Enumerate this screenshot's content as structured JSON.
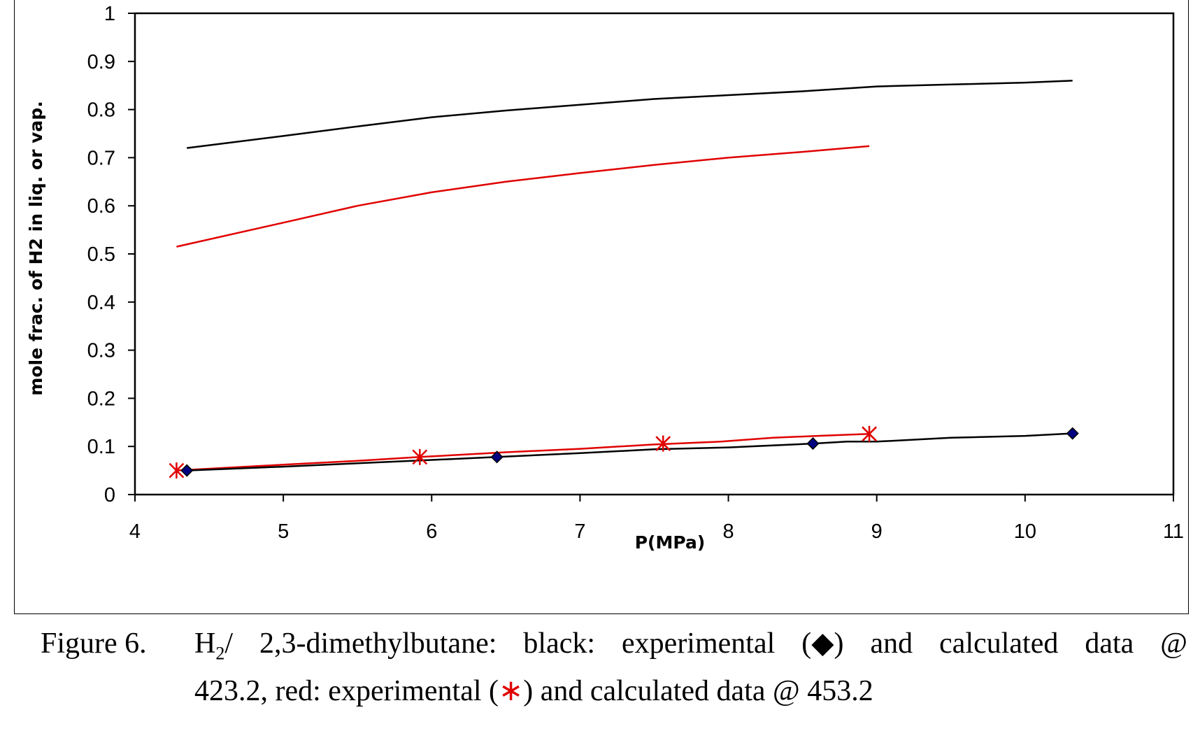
{
  "chart_data": {
    "type": "line",
    "xlabel": "P(MPa)",
    "ylabel": "mole frac. of H2 in liq. or vap.",
    "xlim": [
      4,
      11
    ],
    "ylim": [
      0,
      1
    ],
    "x_ticks": [
      "4",
      "5",
      "6",
      "7",
      "8",
      "9",
      "10",
      "11"
    ],
    "y_ticks": [
      "0",
      "0.1",
      "0.2",
      "0.3",
      "0.4",
      "0.5",
      "0.6",
      "0.7",
      "0.8",
      "0.9",
      "1"
    ],
    "grid": false,
    "series": [
      {
        "role": "calc-vapor-423.2",
        "color": "#000000",
        "marker": "none",
        "x": [
          4.35,
          5.0,
          5.5,
          6.0,
          6.5,
          7.0,
          7.5,
          8.0,
          8.5,
          9.0,
          9.5,
          10.0,
          10.32
        ],
        "y": [
          0.72,
          0.745,
          0.765,
          0.784,
          0.798,
          0.81,
          0.822,
          0.83,
          0.838,
          0.848,
          0.852,
          0.856,
          0.86
        ]
      },
      {
        "role": "calc-vapor-453.2",
        "color": "#e00000",
        "marker": "none",
        "x": [
          4.28,
          5.0,
          5.5,
          6.0,
          6.5,
          7.0,
          7.5,
          8.0,
          8.5,
          8.95
        ],
        "y": [
          0.515,
          0.565,
          0.6,
          0.628,
          0.65,
          0.668,
          0.685,
          0.7,
          0.712,
          0.724
        ]
      },
      {
        "role": "calc-liquid-453.2",
        "color": "#e00000",
        "marker": "none",
        "x": [
          4.28,
          5.0,
          5.5,
          5.92,
          6.5,
          7.0,
          7.5,
          7.95,
          8.3,
          8.6,
          8.95
        ],
        "y": [
          0.05,
          0.062,
          0.07,
          0.078,
          0.088,
          0.095,
          0.104,
          0.11,
          0.118,
          0.122,
          0.126
        ]
      },
      {
        "role": "calc-liquid-423.2",
        "color": "#000000",
        "marker": "none",
        "x": [
          4.35,
          5.0,
          5.5,
          6.0,
          6.44,
          7.0,
          7.5,
          8.0,
          8.57,
          8.8,
          9.0,
          9.5,
          10.0,
          10.32
        ],
        "y": [
          0.05,
          0.058,
          0.065,
          0.072,
          0.078,
          0.086,
          0.094,
          0.098,
          0.106,
          0.11,
          0.11,
          0.118,
          0.122,
          0.127
        ]
      },
      {
        "role": "exp-liquid-453.2",
        "color": "#e00000",
        "marker": "asterisk",
        "x": [
          4.28,
          5.92,
          7.56,
          8.95
        ],
        "y": [
          0.05,
          0.078,
          0.106,
          0.126
        ]
      },
      {
        "role": "exp-liquid-423.2",
        "color": "#000080",
        "marker": "diamond",
        "x": [
          4.35,
          6.44,
          8.57,
          10.32
        ],
        "y": [
          0.05,
          0.078,
          0.106,
          0.127
        ]
      }
    ]
  },
  "caption": {
    "label": "Figure 6.",
    "h": "H",
    "h_sub": "2",
    "words_line1": [
      "/",
      "2,3-dimethylbutane:",
      "black:",
      "experimental",
      "(◆)",
      "and",
      "calculated",
      "data",
      "@"
    ],
    "line2_part1": "423.2, red: experimental (",
    "star": "∗",
    "line2_part2": ") and calculated data @ 453.2"
  }
}
